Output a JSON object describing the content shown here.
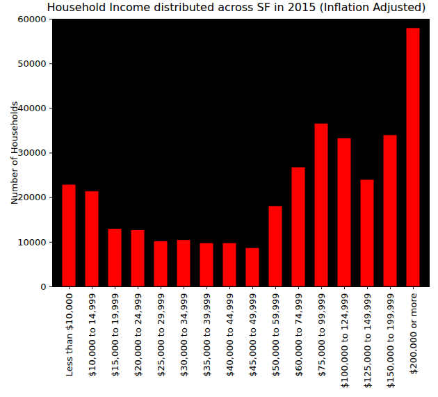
{
  "chart_data": {
    "type": "bar",
    "title": "Household Income distributed across SF in 2015 (Inflation Adjusted)",
    "y_label": "Number of Households",
    "categories": [
      "Less than $10,000",
      "$10,000 to 14,999",
      "$15,000 to 19,999",
      "$20,000 to 24,999",
      "$25,000 to 29,999",
      "$30,000 to 34,999",
      "$35,000 to 39,999",
      "$40,000 to 44,999",
      "$45,000 to 49,999",
      "$50,000 to 59,999",
      "$60,000 to 74,999",
      "$75,000 to 99,999",
      "$100,000 to 124,999",
      "$125,000 to 149,999",
      "$150,000 to 199,999",
      "$200,000 or more"
    ],
    "values": [
      22900,
      21400,
      13000,
      12700,
      10200,
      10500,
      9800,
      9800,
      8700,
      18100,
      26800,
      36600,
      33300,
      24000,
      34000,
      58000
    ],
    "color": "#ff0000",
    "ylim": [
      0,
      60000
    ],
    "yticks": [
      0,
      10000,
      20000,
      30000,
      40000,
      50000,
      60000
    ],
    "grid": false
  }
}
